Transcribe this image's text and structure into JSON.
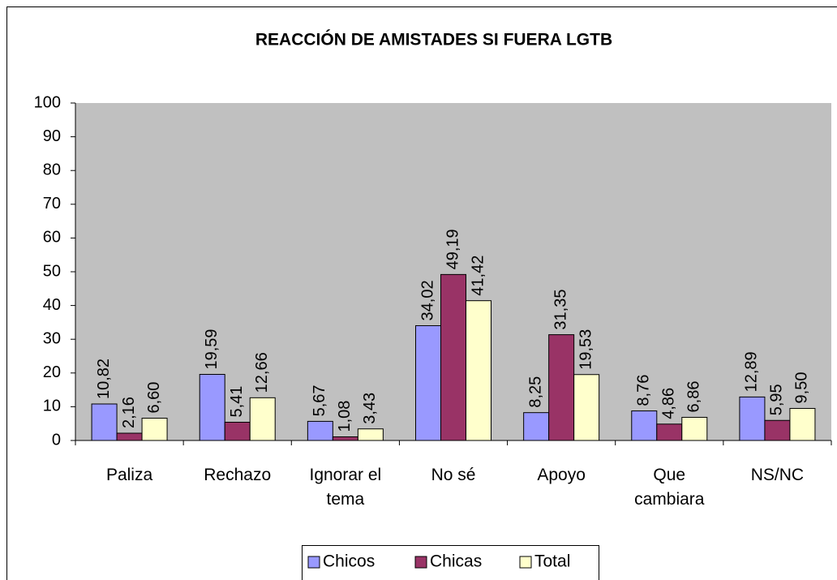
{
  "chart_data": {
    "type": "bar",
    "title": "REACCIÓN DE AMISTADES SI FUERA LGTB",
    "categories": [
      "Paliza",
      "Rechazo",
      "Ignorar el tema",
      "No sé",
      "Apoyo",
      "Que cambiara",
      "NS/NC"
    ],
    "series": [
      {
        "name": "Chicos",
        "color": "#9999FF",
        "values": [
          10.82,
          19.59,
          5.67,
          34.02,
          8.25,
          8.76,
          12.89
        ],
        "value_labels": [
          "10,82",
          "19,59",
          "5,67",
          "34,02",
          "8,25",
          "8,76",
          "12,89"
        ]
      },
      {
        "name": "Chicas",
        "color": "#993366",
        "values": [
          2.16,
          5.41,
          1.08,
          49.19,
          31.35,
          4.86,
          5.95
        ],
        "value_labels": [
          "2,16",
          "5,41",
          "1,08",
          "49,19",
          "31,35",
          "4,86",
          "5,95"
        ]
      },
      {
        "name": "Total",
        "color": "#FFFFCC",
        "values": [
          6.6,
          12.66,
          3.43,
          41.42,
          19.53,
          6.86,
          9.5
        ],
        "value_labels": [
          "6,60",
          "12,66",
          "3,43",
          "41,42",
          "19,53",
          "6,86",
          "9,50"
        ]
      }
    ],
    "ylim": [
      0,
      100
    ],
    "yticks": [
      0,
      10,
      20,
      30,
      40,
      50,
      60,
      70,
      80,
      90,
      100
    ],
    "plot_background": "#C0C0C0",
    "legend": "bottom"
  }
}
